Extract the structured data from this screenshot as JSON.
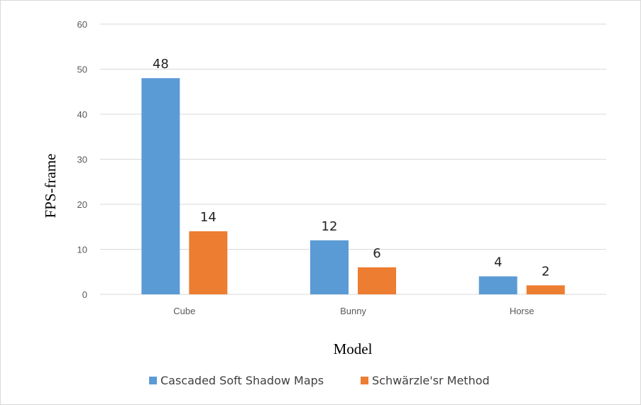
{
  "chart_data": {
    "type": "bar",
    "categories": [
      "Cube",
      "Bunny",
      "Horse"
    ],
    "series": [
      {
        "name": "Cascaded Soft Shadow Maps",
        "values": [
          48,
          12,
          4
        ],
        "color": "#5b9bd5"
      },
      {
        "name": "Schwärzle'sr Method",
        "values": [
          14,
          6,
          2
        ],
        "color": "#ed7d31"
      }
    ],
    "title": "",
    "xlabel": "Model",
    "ylabel": "FPS-frame",
    "ylim": [
      0,
      60
    ],
    "yticks": [
      0,
      10,
      20,
      30,
      40,
      50,
      60
    ],
    "grid": true,
    "legend_position": "bottom",
    "data_labels": true
  }
}
